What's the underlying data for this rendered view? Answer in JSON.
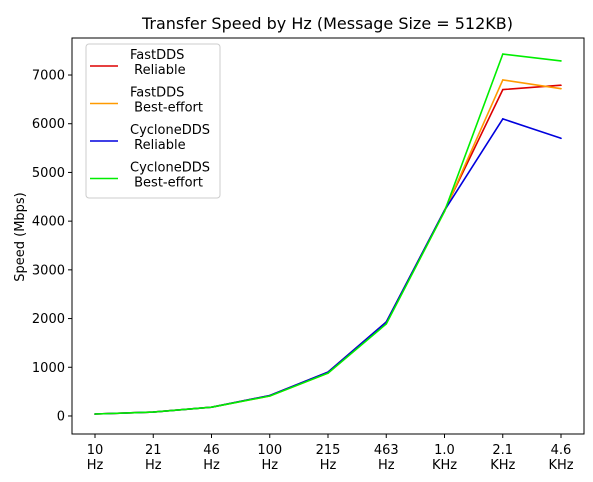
{
  "chart_data": {
    "type": "line",
    "title": "Transfer Speed by Hz (Message Size = 512KB)",
    "xlabel": "",
    "ylabel": "Speed (Mbps)",
    "categories": [
      "10\nHz",
      "21\nHz",
      "46\nHz",
      "100\nHz",
      "215\nHz",
      "463\nHz",
      "1.0\nKHz",
      "2.1\nKHz",
      "4.6\nKHz"
    ],
    "ylim": [
      -370,
      7760
    ],
    "yticks": [
      0,
      1000,
      2000,
      3000,
      4000,
      5000,
      6000,
      7000
    ],
    "legend_position": "upper-left",
    "grid": false,
    "series": [
      {
        "name": "FastDDS\n Reliable",
        "color": "#dd0000",
        "values": [
          40,
          80,
          180,
          420,
          900,
          1930,
          4220,
          6700,
          6790
        ]
      },
      {
        "name": "FastDDS\n Best-effort",
        "color": "#ff9a00",
        "values": [
          40,
          80,
          180,
          410,
          880,
          1900,
          4200,
          6900,
          6720
        ]
      },
      {
        "name": "CycloneDDS\n Reliable",
        "color": "#0000dd",
        "values": [
          40,
          80,
          180,
          420,
          900,
          1930,
          4220,
          6100,
          5700
        ]
      },
      {
        "name": "CycloneDDS\n Best-effort",
        "color": "#00ee00",
        "values": [
          40,
          80,
          180,
          410,
          880,
          1890,
          4200,
          7430,
          7290
        ]
      }
    ]
  }
}
